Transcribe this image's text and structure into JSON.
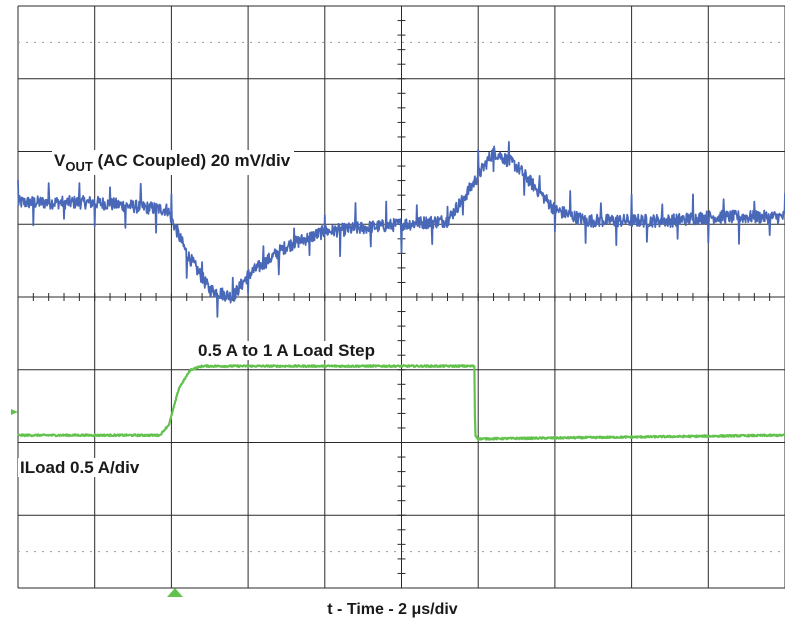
{
  "chart_data": {
    "type": "line",
    "title": "",
    "xlabel": "t - Time - 2 μs/div",
    "divisions": {
      "x": 10,
      "y": 8
    },
    "grid": true,
    "series": [
      {
        "name": "VOUT (AC Coupled) 20 mV/div",
        "name_parts": {
          "prefix": "V",
          "subscript": "OUT",
          "suffix": " (AC Coupled) 20 mV/div"
        },
        "color": "#4a68b8",
        "x_div": [
          0,
          1.0,
          1.95,
          2.2,
          2.5,
          2.8,
          3.0,
          3.5,
          4.0,
          4.5,
          5.0,
          5.6,
          5.9,
          6.2,
          6.5,
          7.0,
          7.4,
          7.8,
          8.5,
          9.0,
          10.0
        ],
        "y_div": [
          5.3,
          5.3,
          5.2,
          4.6,
          4.1,
          4.0,
          4.3,
          4.7,
          4.9,
          4.95,
          5.0,
          5.05,
          5.5,
          6.0,
          5.8,
          5.2,
          5.05,
          5.05,
          5.05,
          5.1,
          5.1
        ]
      },
      {
        "name": "ILoad 0.5 A/div",
        "color": "#63c24e",
        "x_div": [
          0,
          1.85,
          1.97,
          2.1,
          2.25,
          2.4,
          5.95,
          5.96,
          6.0,
          10.0
        ],
        "y_div": [
          2.1,
          2.1,
          2.25,
          2.75,
          3.0,
          3.05,
          3.05,
          2.1,
          2.05,
          2.1
        ]
      }
    ],
    "annotations": [
      "0.5 A to 1 A Load Step"
    ]
  }
}
